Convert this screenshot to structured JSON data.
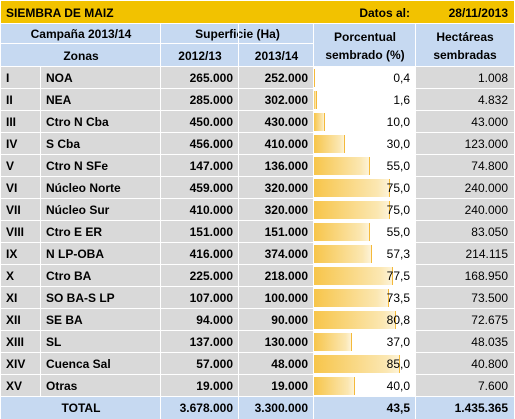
{
  "header": {
    "title": "SIEMBRA DE MAIZ",
    "date_label": "Datos al:",
    "date_value": "28/11/2013"
  },
  "columns": {
    "campaign": "Campaña 2013/14",
    "zones": "Zonas",
    "surface": "Superficie (Ha)",
    "year_prev": "2012/13",
    "year_curr": "2013/14",
    "pct_line1": "Porcentual",
    "pct_line2": "sembrado (%)",
    "ha_line1": "Hectáreas",
    "ha_line2": "sembradas"
  },
  "rows": [
    {
      "num": "I",
      "zone": "NOA",
      "prev": "265.000",
      "curr": "252.000",
      "pct": "0,4",
      "pct_value": 0.4,
      "ha": "1.008"
    },
    {
      "num": "II",
      "zone": "NEA",
      "prev": "285.000",
      "curr": "302.000",
      "pct": "1,6",
      "pct_value": 1.6,
      "ha": "4.832"
    },
    {
      "num": "III",
      "zone": "Ctro N Cba",
      "prev": "450.000",
      "curr": "430.000",
      "pct": "10,0",
      "pct_value": 10.0,
      "ha": "43.000"
    },
    {
      "num": "IV",
      "zone": "S Cba",
      "prev": "456.000",
      "curr": "410.000",
      "pct": "30,0",
      "pct_value": 30.0,
      "ha": "123.000"
    },
    {
      "num": "V",
      "zone": "Ctro N SFe",
      "prev": "147.000",
      "curr": "136.000",
      "pct": "55,0",
      "pct_value": 55.0,
      "ha": "74.800"
    },
    {
      "num": "VI",
      "zone": "Núcleo Norte",
      "prev": "459.000",
      "curr": "320.000",
      "pct": "75,0",
      "pct_value": 75.0,
      "ha": "240.000"
    },
    {
      "num": "VII",
      "zone": "Núcleo Sur",
      "prev": "410.000",
      "curr": "320.000",
      "pct": "75,0",
      "pct_value": 75.0,
      "ha": "240.000"
    },
    {
      "num": "VIII",
      "zone": "Ctro E ER",
      "prev": "151.000",
      "curr": "151.000",
      "pct": "55,0",
      "pct_value": 55.0,
      "ha": "83.050"
    },
    {
      "num": "IX",
      "zone": "N LP-OBA",
      "prev": "416.000",
      "curr": "374.000",
      "pct": "57,3",
      "pct_value": 57.3,
      "ha": "214.115"
    },
    {
      "num": "X",
      "zone": "Ctro BA",
      "prev": "225.000",
      "curr": "218.000",
      "pct": "77,5",
      "pct_value": 77.5,
      "ha": "168.950"
    },
    {
      "num": "XI",
      "zone": "SO BA-S LP",
      "prev": "107.000",
      "curr": "100.000",
      "pct": "73,5",
      "pct_value": 73.5,
      "ha": "73.500"
    },
    {
      "num": "XII",
      "zone": "SE BA",
      "prev": "94.000",
      "curr": "90.000",
      "pct": "80,8",
      "pct_value": 80.8,
      "ha": "72.675"
    },
    {
      "num": "XIII",
      "zone": "SL",
      "prev": "137.000",
      "curr": "130.000",
      "pct": "37,0",
      "pct_value": 37.0,
      "ha": "48.035"
    },
    {
      "num": "XIV",
      "zone": "Cuenca Sal",
      "prev": "57.000",
      "curr": "48.000",
      "pct": "85,0",
      "pct_value": 85.0,
      "ha": "40.800"
    },
    {
      "num": "XV",
      "zone": "Otras",
      "prev": "19.000",
      "curr": "19.000",
      "pct": "40,0",
      "pct_value": 40.0,
      "ha": "7.600"
    }
  ],
  "total": {
    "label": "TOTAL",
    "prev": "3.678.000",
    "curr": "3.300.000",
    "pct": "43,5",
    "pct_value": 43.5,
    "ha": "1.435.365"
  },
  "colors": {
    "title_bg": "#f2c200",
    "header_bg": "#c6d9f1",
    "row_bg": "#d9d9d9",
    "bar": "#f7c54a",
    "grid": "#ffffff"
  }
}
